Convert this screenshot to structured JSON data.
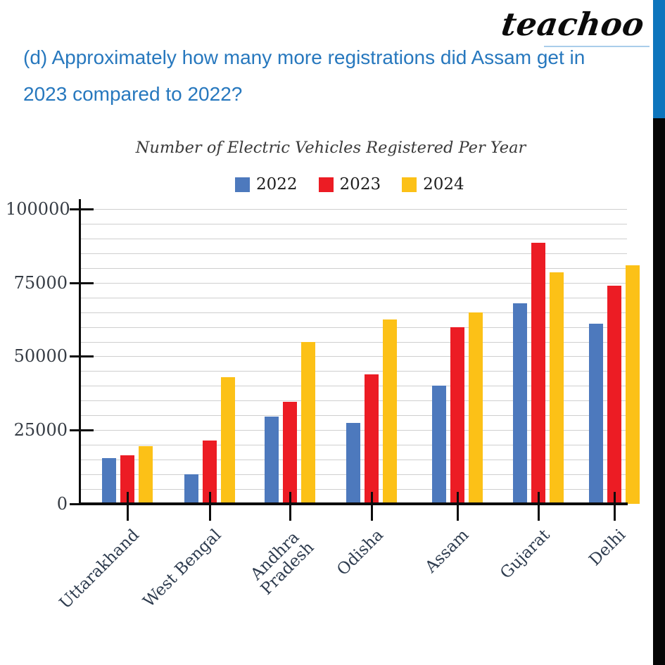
{
  "page": {
    "logo_text": "teachoo",
    "question_line1": "(d) Approximately how many more registrations did Assam get in",
    "question_line2": "2023 compared to 2022?"
  },
  "colors": {
    "accent_stripe_blue": "#0d75bd",
    "accent_stripe_black": "#060606",
    "question_text_blue": "#2778be",
    "series_2022_blue": "#4d79bd",
    "series_2023_red": "#ec1c24",
    "series_2024_yellow": "#fcc117"
  },
  "chart_data": {
    "type": "bar",
    "title": "Number of Electric Vehicles Registered Per Year",
    "xlabel": "",
    "ylabel": "",
    "categories": [
      "Uttarakhand",
      "West Bengal",
      "Andhra\nPradesh",
      "Odisha",
      "Assam",
      "Gujarat",
      "Delhi"
    ],
    "series": [
      {
        "name": "2022",
        "color": "#4d79bd",
        "values": [
          15500,
          10000,
          29500,
          27500,
          40000,
          68000,
          61000
        ]
      },
      {
        "name": "2023",
        "color": "#ec1c24",
        "values": [
          16500,
          21500,
          34500,
          44000,
          60000,
          88500,
          74000
        ]
      },
      {
        "name": "2024",
        "color": "#fcc117",
        "values": [
          19500,
          43000,
          55000,
          62500,
          65000,
          78500,
          81000
        ]
      }
    ],
    "ylim": [
      0,
      100000
    ],
    "ytick_step": 25000,
    "minor_grid_step": 5000,
    "yticks": [
      "100000",
      "75000",
      "50000",
      "25000",
      "0"
    ],
    "grid": true,
    "legend_position": "top"
  }
}
